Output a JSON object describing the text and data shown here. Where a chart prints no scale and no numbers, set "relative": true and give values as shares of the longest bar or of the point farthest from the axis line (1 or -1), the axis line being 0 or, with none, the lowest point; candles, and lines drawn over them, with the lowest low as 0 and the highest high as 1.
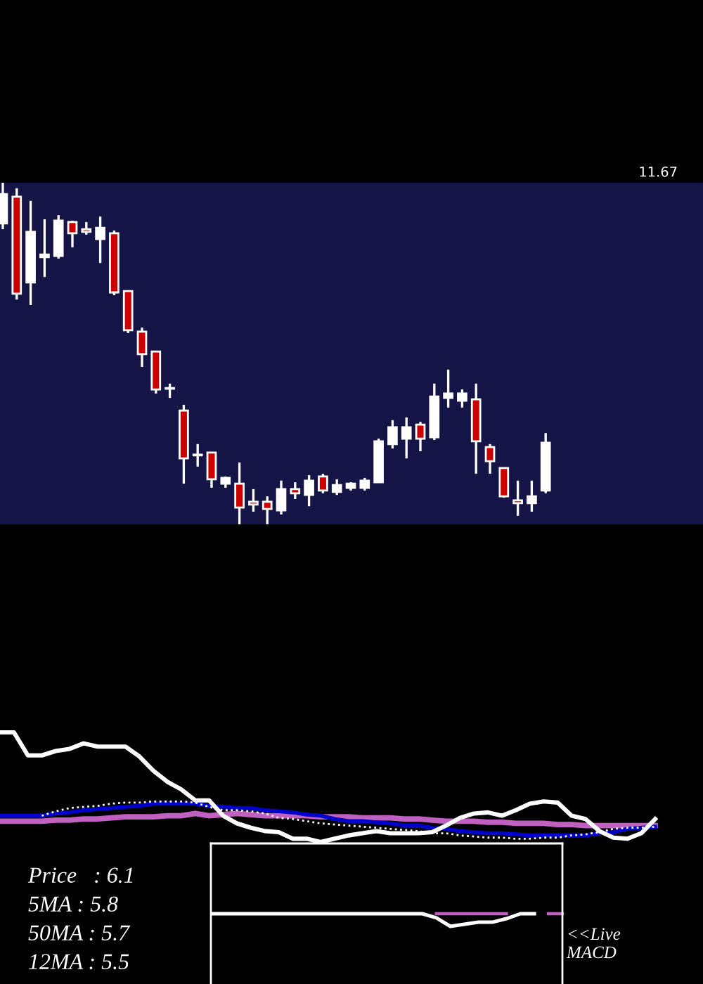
{
  "chart_data": [
    {
      "type": "candlestick",
      "relative": true,
      "annotations": [
        "11.67"
      ],
      "categories": [
        null,
        null,
        null,
        null,
        null,
        null,
        null,
        null,
        null,
        null,
        null,
        null,
        null,
        null,
        null,
        null,
        null,
        null,
        null,
        null,
        null,
        null,
        null,
        null,
        null,
        null,
        null,
        null,
        null,
        null,
        null,
        null,
        null,
        null,
        null,
        null,
        null,
        null,
        null,
        null
      ],
      "ohlc": [
        [
          0.881,
          1.0,
          0.864,
          0.967
        ],
        [
          0.959,
          0.984,
          0.658,
          0.675
        ],
        [
          0.708,
          0.947,
          0.642,
          0.856
        ],
        [
          0.782,
          0.893,
          0.724,
          0.79
        ],
        [
          0.786,
          0.905,
          0.778,
          0.889
        ],
        [
          0.885,
          0.889,
          0.811,
          0.852
        ],
        [
          0.864,
          0.885,
          0.848,
          0.856
        ],
        [
          0.835,
          0.901,
          0.765,
          0.868
        ],
        [
          0.852,
          0.86,
          0.671,
          0.679
        ],
        [
          0.683,
          0.683,
          0.56,
          0.568
        ],
        [
          0.564,
          0.576,
          0.461,
          0.498
        ],
        [
          0.506,
          0.506,
          0.383,
          0.395
        ],
        [
          0.397,
          0.412,
          0.37,
          0.399
        ],
        [
          0.333,
          0.35,
          0.119,
          0.193
        ],
        [
          0.202,
          0.235,
          0.169,
          0.204
        ],
        [
          0.21,
          0.21,
          0.107,
          0.132
        ],
        [
          0.119,
          0.14,
          0.107,
          0.136
        ],
        [
          0.119,
          0.181,
          0.0,
          0.049
        ],
        [
          0.066,
          0.103,
          0.037,
          0.058
        ],
        [
          0.066,
          0.082,
          0.0,
          0.045
        ],
        [
          0.041,
          0.128,
          0.029,
          0.103
        ],
        [
          0.103,
          0.123,
          0.074,
          0.091
        ],
        [
          0.086,
          0.144,
          0.053,
          0.128
        ],
        [
          0.14,
          0.148,
          0.091,
          0.099
        ],
        [
          0.095,
          0.132,
          0.086,
          0.115
        ],
        [
          0.107,
          0.123,
          0.099,
          0.119
        ],
        [
          0.107,
          0.136,
          0.099,
          0.128
        ],
        [
          0.123,
          0.251,
          0.123,
          0.243
        ],
        [
          0.235,
          0.305,
          0.222,
          0.284
        ],
        [
          0.251,
          0.313,
          0.193,
          0.284
        ],
        [
          0.292,
          0.3,
          0.214,
          0.251
        ],
        [
          0.255,
          0.412,
          0.247,
          0.374
        ],
        [
          0.37,
          0.453,
          0.342,
          0.383
        ],
        [
          0.362,
          0.395,
          0.342,
          0.383
        ],
        [
          0.366,
          0.412,
          0.148,
          0.243
        ],
        [
          0.226,
          0.235,
          0.148,
          0.185
        ],
        [
          0.165,
          0.165,
          0.078,
          0.082
        ],
        [
          0.07,
          0.128,
          0.025,
          0.062
        ],
        [
          0.062,
          0.128,
          0.037,
          0.082
        ],
        [
          0.099,
          0.267,
          0.091,
          0.239
        ]
      ],
      "colors": [
        "#ffffff",
        "#cc0000",
        "#ffffff",
        "#ffffff",
        "#ffffff",
        "#cc0000",
        "#cc0000",
        "#ffffff",
        "#cc0000",
        "#cc0000",
        "#cc0000",
        "#cc0000",
        "#ffffff",
        "#cc0000",
        "#ffffff",
        "#cc0000",
        "#ffffff",
        "#cc0000",
        "#cc0000",
        "#cc0000",
        "#ffffff",
        "#cc0000",
        "#ffffff",
        "#cc0000",
        "#ffffff",
        "#ffffff",
        "#ffffff",
        "#ffffff",
        "#ffffff",
        "#ffffff",
        "#cc0000",
        "#ffffff",
        "#ffffff",
        "#ffffff",
        "#cc0000",
        "#cc0000",
        "#cc0000",
        "#cc0000",
        "#ffffff",
        "#ffffff"
      ]
    },
    {
      "type": "line",
      "relative": true,
      "line_style": "solid",
      "annotations": [
        "Price   : 6.1",
        "5MA : 5.8",
        "50MA : 5.7",
        "12MA : 5.5"
      ],
      "categories": [
        null,
        null,
        null,
        null,
        null,
        null,
        null,
        null,
        null,
        null,
        null,
        null,
        null,
        null,
        null,
        null,
        null,
        null,
        null,
        null,
        null,
        null,
        null,
        null,
        null,
        null,
        null,
        null,
        null,
        null,
        null,
        null,
        null,
        null,
        null,
        null,
        null,
        null,
        null,
        null,
        null,
        null,
        null,
        null,
        null,
        null,
        null,
        null
      ],
      "series": [
        {
          "color": "#c060c0",
          "values": [
            0.19,
            0.19,
            0.19,
            0.19,
            0.2,
            0.2,
            0.21,
            0.21,
            0.22,
            0.23,
            0.23,
            0.23,
            0.24,
            0.24,
            0.26,
            0.24,
            0.25,
            0.26,
            0.25,
            0.24,
            0.24,
            0.24,
            0.24,
            0.23,
            0.23,
            0.23,
            0.22,
            0.22,
            0.22,
            0.21,
            0.21,
            0.2,
            0.19,
            0.19,
            0.19,
            0.18,
            0.18,
            0.17,
            0.17,
            0.17,
            0.16,
            0.16,
            0.15,
            0.15,
            0.15,
            0.15,
            0.15,
            0.15
          ]
        },
        {
          "color": "#0000cc",
          "values": [
            0.24,
            0.24,
            0.24,
            0.24,
            0.26,
            0.27,
            0.29,
            0.3,
            0.31,
            0.32,
            0.33,
            0.35,
            0.35,
            0.35,
            0.35,
            0.33,
            0.32,
            0.31,
            0.31,
            0.29,
            0.28,
            0.27,
            0.25,
            0.24,
            0.21,
            0.19,
            0.19,
            0.18,
            0.17,
            0.15,
            0.15,
            0.13,
            0.12,
            0.1,
            0.09,
            0.08,
            0.08,
            0.07,
            0.06,
            0.06,
            0.06,
            0.06,
            0.06,
            0.08,
            0.09,
            0.12,
            0.13,
            0.14
          ]
        },
        {
          "color": "#ffffff",
          "line_style": "dotted",
          "values": [
            null,
            null,
            null,
            0.24,
            0.28,
            0.31,
            0.32,
            0.33,
            0.35,
            0.36,
            0.36,
            0.37,
            0.37,
            0.37,
            0.36,
            0.32,
            0.29,
            0.29,
            0.28,
            0.26,
            0.22,
            0.21,
            0.19,
            0.17,
            0.16,
            0.15,
            0.14,
            0.13,
            0.12,
            0.11,
            0.1,
            0.08,
            0.08,
            0.06,
            0.05,
            0.04,
            0.04,
            0.03,
            0.03,
            0.04,
            0.04,
            0.06,
            0.07,
            0.09,
            0.12,
            0.13,
            0.13,
            0.14
          ]
        },
        {
          "color": "#ffffff",
          "values": [
            1.0,
            1.0,
            0.79,
            0.79,
            0.83,
            0.85,
            0.9,
            0.87,
            0.87,
            0.87,
            0.78,
            0.65,
            0.55,
            0.48,
            0.38,
            0.38,
            0.24,
            0.17,
            0.13,
            0.1,
            0.09,
            0.03,
            0.03,
            0.0,
            0.03,
            0.06,
            0.08,
            0.1,
            0.08,
            0.08,
            0.08,
            0.09,
            0.15,
            0.22,
            0.26,
            0.27,
            0.24,
            0.29,
            0.35,
            0.37,
            0.36,
            0.24,
            0.21,
            0.1,
            0.04,
            0.03,
            0.08,
            0.21
          ]
        }
      ]
    },
    {
      "type": "line",
      "relative": true,
      "line_style": "solid",
      "annotations": [
        "<<Live\nMACD"
      ],
      "categories": [
        null,
        null,
        null,
        null,
        null,
        null,
        null,
        null,
        null,
        null,
        null,
        null,
        null,
        null,
        null,
        null,
        null,
        null,
        null,
        null,
        null,
        null,
        null,
        null,
        null,
        null
      ],
      "series": [
        {
          "color": "#c060c0",
          "values": [
            null,
            null,
            null,
            null,
            null,
            null,
            null,
            null,
            null,
            null,
            null,
            null,
            null,
            null,
            null,
            null,
            1.0,
            1.0,
            1.0,
            1.0,
            1.0,
            1.0,
            null,
            null,
            1.0,
            1.0
          ]
        },
        {
          "color": "#ffffff",
          "values": [
            1.0,
            1.0,
            1.0,
            1.0,
            1.0,
            1.0,
            1.0,
            1.0,
            1.0,
            1.0,
            1.0,
            1.0,
            1.0,
            1.0,
            1.0,
            1.0,
            0.67,
            0.0,
            0.17,
            0.33,
            0.33,
            0.61,
            1.0,
            1.0,
            null,
            null
          ]
        }
      ]
    }
  ]
}
